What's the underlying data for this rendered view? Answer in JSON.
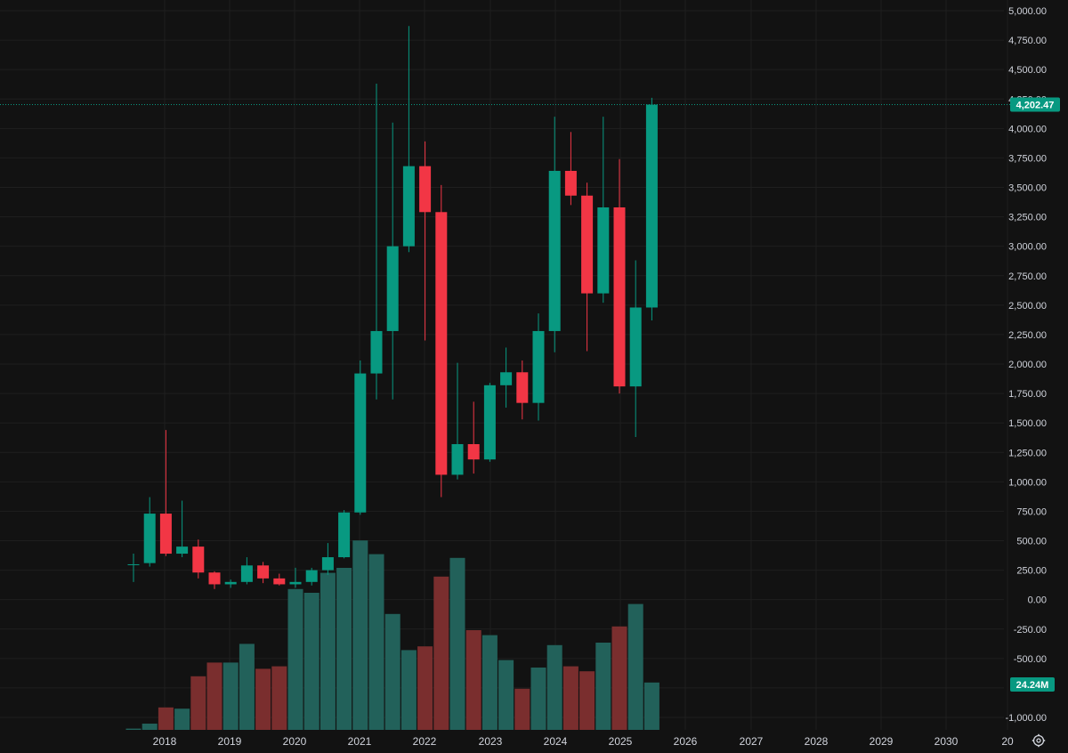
{
  "chart_data": {
    "type": "candlestick",
    "timeframe": "monthly",
    "price_axis": {
      "ticks": [
        "5,000.00",
        "4,750.00",
        "4,500.00",
        "4,250.00",
        "4,000.00",
        "3,750.00",
        "3,500.00",
        "3,250.00",
        "3,000.00",
        "2,750.00",
        "2,500.00",
        "2,250.00",
        "2,000.00",
        "1,750.00",
        "1,500.00",
        "1,250.00",
        "1,000.00",
        "750.00",
        "500.00",
        "250.00",
        "0.00",
        "-250.00",
        "-500.00",
        "-750.00",
        "-1,000.00"
      ],
      "range": [
        -1000,
        5000
      ]
    },
    "time_axis": {
      "labels": [
        "2018",
        "2019",
        "2020",
        "2021",
        "2022",
        "2023",
        "2024",
        "2025",
        "2026",
        "2027",
        "2028",
        "2029",
        "2030",
        "20"
      ]
    },
    "last_price": {
      "value": 4202.47,
      "label": "4,202.47",
      "color": "#089981"
    },
    "volume_tag": {
      "label": "24.24M",
      "color": "#089981"
    },
    "colors": {
      "up": "#089981",
      "down": "#f23645",
      "vol_up": "#22615a",
      "vol_down": "#7a2e2e"
    },
    "candles": [
      {
        "o": 300,
        "h": 390,
        "l": 150,
        "c": 300,
        "v": 1
      },
      {
        "o": 310,
        "h": 870,
        "l": 280,
        "c": 730,
        "v": 5
      },
      {
        "o": 730,
        "h": 1440,
        "l": 370,
        "c": 390,
        "v": 18
      },
      {
        "o": 390,
        "h": 840,
        "l": 360,
        "c": 450,
        "v": 17
      },
      {
        "o": 450,
        "h": 510,
        "l": 180,
        "c": 230,
        "v": 43
      },
      {
        "o": 230,
        "h": 240,
        "l": 90,
        "c": 130,
        "v": 54
      },
      {
        "o": 130,
        "h": 170,
        "l": 100,
        "c": 150,
        "v": 54
      },
      {
        "o": 150,
        "h": 360,
        "l": 130,
        "c": 290,
        "v": 69
      },
      {
        "o": 290,
        "h": 320,
        "l": 140,
        "c": 180,
        "v": 49
      },
      {
        "o": 180,
        "h": 220,
        "l": 120,
        "c": 130,
        "v": 51
      },
      {
        "o": 130,
        "h": 270,
        "l": 100,
        "c": 150,
        "v": 113
      },
      {
        "o": 150,
        "h": 270,
        "l": 120,
        "c": 250,
        "v": 110
      },
      {
        "o": 250,
        "h": 480,
        "l": 210,
        "c": 360,
        "v": 126
      },
      {
        "o": 360,
        "h": 760,
        "l": 350,
        "c": 740,
        "v": 130
      },
      {
        "o": 740,
        "h": 2030,
        "l": 720,
        "c": 1920,
        "v": 152
      },
      {
        "o": 1920,
        "h": 4380,
        "l": 1700,
        "c": 2280,
        "v": 141
      },
      {
        "o": 2280,
        "h": 4050,
        "l": 1700,
        "c": 3000,
        "v": 93
      },
      {
        "o": 3000,
        "h": 4870,
        "l": 2950,
        "c": 3680,
        "v": 64
      },
      {
        "o": 3680,
        "h": 3890,
        "l": 2200,
        "c": 3290,
        "v": 67
      },
      {
        "o": 3290,
        "h": 3520,
        "l": 870,
        "c": 1060,
        "v": 123
      },
      {
        "o": 1060,
        "h": 2010,
        "l": 1020,
        "c": 1320,
        "v": 138
      },
      {
        "o": 1320,
        "h": 1680,
        "l": 1070,
        "c": 1190,
        "v": 80
      },
      {
        "o": 1190,
        "h": 1840,
        "l": 1170,
        "c": 1820,
        "v": 76
      },
      {
        "o": 1820,
        "h": 2140,
        "l": 1630,
        "c": 1930,
        "v": 56
      },
      {
        "o": 1930,
        "h": 2030,
        "l": 1530,
        "c": 1670,
        "v": 33
      },
      {
        "o": 1670,
        "h": 2430,
        "l": 1520,
        "c": 2280,
        "v": 50
      },
      {
        "o": 2280,
        "h": 4100,
        "l": 2100,
        "c": 3640,
        "v": 68
      },
      {
        "o": 3640,
        "h": 3970,
        "l": 3350,
        "c": 3430,
        "v": 51
      },
      {
        "o": 3430,
        "h": 3540,
        "l": 2110,
        "c": 2600,
        "v": 47
      },
      {
        "o": 2600,
        "h": 4100,
        "l": 2520,
        "c": 3330,
        "v": 70
      },
      {
        "o": 3330,
        "h": 3740,
        "l": 1750,
        "c": 1810,
        "v": 83
      },
      {
        "o": 1810,
        "h": 2880,
        "l": 1380,
        "c": 2480,
        "v": 101
      },
      {
        "o": 2480,
        "h": 4260,
        "l": 2370,
        "c": 4202.47,
        "v": 38
      }
    ]
  }
}
